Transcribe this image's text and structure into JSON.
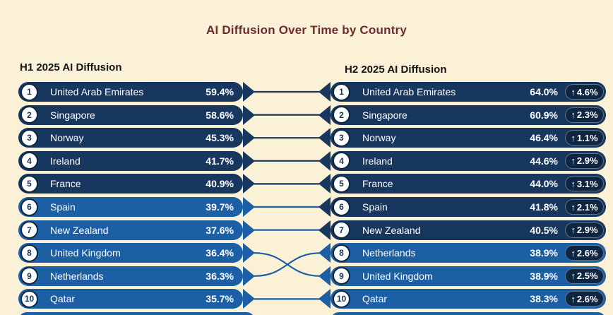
{
  "title": "AI Diffusion Over Time by Country",
  "glyphs": {
    "up_arrow": "↑"
  },
  "colors": {
    "background": "#FBF1D7",
    "dark_row": "#17375E",
    "medium_row": "#1D5FA5",
    "badge_background": "#0F2643",
    "title_text": "#6E2A2E"
  },
  "left_column": {
    "header": "H1 2025 AI Diffusion",
    "rows": [
      {
        "rank": "1",
        "country": "United Arab Emirates",
        "value": "59.4%",
        "tone": "dark"
      },
      {
        "rank": "2",
        "country": "Singapore",
        "value": "58.6%",
        "tone": "dark"
      },
      {
        "rank": "3",
        "country": "Norway",
        "value": "45.3%",
        "tone": "dark"
      },
      {
        "rank": "4",
        "country": "Ireland",
        "value": "41.7%",
        "tone": "dark"
      },
      {
        "rank": "5",
        "country": "France",
        "value": "40.9%",
        "tone": "dark"
      },
      {
        "rank": "6",
        "country": "Spain",
        "value": "39.7%",
        "tone": "medium"
      },
      {
        "rank": "7",
        "country": "New Zealand",
        "value": "37.6%",
        "tone": "medium"
      },
      {
        "rank": "8",
        "country": "United Kingdom",
        "value": "36.4%",
        "tone": "medium"
      },
      {
        "rank": "9",
        "country": "Netherlands",
        "value": "36.3%",
        "tone": "medium"
      },
      {
        "rank": "10",
        "country": "Qatar",
        "value": "35.7%",
        "tone": "medium"
      }
    ]
  },
  "right_column": {
    "header": "H2 2025 AI Diffusion",
    "rows": [
      {
        "rank": "1",
        "country": "United Arab Emirates",
        "value": "64.0%",
        "change": "4.6%",
        "tone": "dark"
      },
      {
        "rank": "2",
        "country": "Singapore",
        "value": "60.9%",
        "change": "2.3%",
        "tone": "dark"
      },
      {
        "rank": "3",
        "country": "Norway",
        "value": "46.4%",
        "change": "1.1%",
        "tone": "dark"
      },
      {
        "rank": "4",
        "country": "Ireland",
        "value": "44.6%",
        "change": "2.9%",
        "tone": "dark"
      },
      {
        "rank": "5",
        "country": "France",
        "value": "44.0%",
        "change": "3.1%",
        "tone": "dark"
      },
      {
        "rank": "6",
        "country": "Spain",
        "value": "41.8%",
        "change": "2.1%",
        "tone": "dark"
      },
      {
        "rank": "7",
        "country": "New Zealand",
        "value": "40.5%",
        "change": "2.9%",
        "tone": "dark"
      },
      {
        "rank": "8",
        "country": "Netherlands",
        "value": "38.9%",
        "change": "2.6%",
        "tone": "medium"
      },
      {
        "rank": "9",
        "country": "United Kingdom",
        "value": "38.9%",
        "change": "2.5%",
        "tone": "medium"
      },
      {
        "rank": "10",
        "country": "Qatar",
        "value": "38.3%",
        "change": "2.6%",
        "tone": "medium"
      }
    ]
  },
  "connections": [
    [
      0,
      0
    ],
    [
      1,
      1
    ],
    [
      2,
      2
    ],
    [
      3,
      3
    ],
    [
      4,
      4
    ],
    [
      5,
      5
    ],
    [
      6,
      6
    ],
    [
      7,
      8
    ],
    [
      8,
      7
    ],
    [
      9,
      9
    ]
  ],
  "chart_data": {
    "type": "table",
    "subtype": "ranked-slope-comparison",
    "title": "AI Diffusion Over Time by Country",
    "legend_position": "none",
    "series": [
      {
        "name": "H1 2025 AI Diffusion",
        "rows": [
          {
            "rank": 1,
            "country": "United Arab Emirates",
            "value": 59.4
          },
          {
            "rank": 2,
            "country": "Singapore",
            "value": 58.6
          },
          {
            "rank": 3,
            "country": "Norway",
            "value": 45.3
          },
          {
            "rank": 4,
            "country": "Ireland",
            "value": 41.7
          },
          {
            "rank": 5,
            "country": "France",
            "value": 40.9
          },
          {
            "rank": 6,
            "country": "Spain",
            "value": 39.7
          },
          {
            "rank": 7,
            "country": "New Zealand",
            "value": 37.6
          },
          {
            "rank": 8,
            "country": "United Kingdom",
            "value": 36.4
          },
          {
            "rank": 9,
            "country": "Netherlands",
            "value": 36.3
          },
          {
            "rank": 10,
            "country": "Qatar",
            "value": 35.7
          }
        ]
      },
      {
        "name": "H2 2025 AI Diffusion",
        "rows": [
          {
            "rank": 1,
            "country": "United Arab Emirates",
            "value": 64.0,
            "change": 4.6
          },
          {
            "rank": 2,
            "country": "Singapore",
            "value": 60.9,
            "change": 2.3
          },
          {
            "rank": 3,
            "country": "Norway",
            "value": 46.4,
            "change": 1.1
          },
          {
            "rank": 4,
            "country": "Ireland",
            "value": 44.6,
            "change": 2.9
          },
          {
            "rank": 5,
            "country": "France",
            "value": 44.0,
            "change": 3.1
          },
          {
            "rank": 6,
            "country": "Spain",
            "value": 41.8,
            "change": 2.1
          },
          {
            "rank": 7,
            "country": "New Zealand",
            "value": 40.5,
            "change": 2.9
          },
          {
            "rank": 8,
            "country": "Netherlands",
            "value": 38.9,
            "change": 2.6
          },
          {
            "rank": 9,
            "country": "United Kingdom",
            "value": 38.9,
            "change": 2.5
          },
          {
            "rank": 10,
            "country": "Qatar",
            "value": 38.3,
            "change": 2.6
          }
        ]
      }
    ],
    "color_encoding": {
      "dark_navy": "value >= 40%",
      "medium_blue": "value < 40%"
    }
  }
}
